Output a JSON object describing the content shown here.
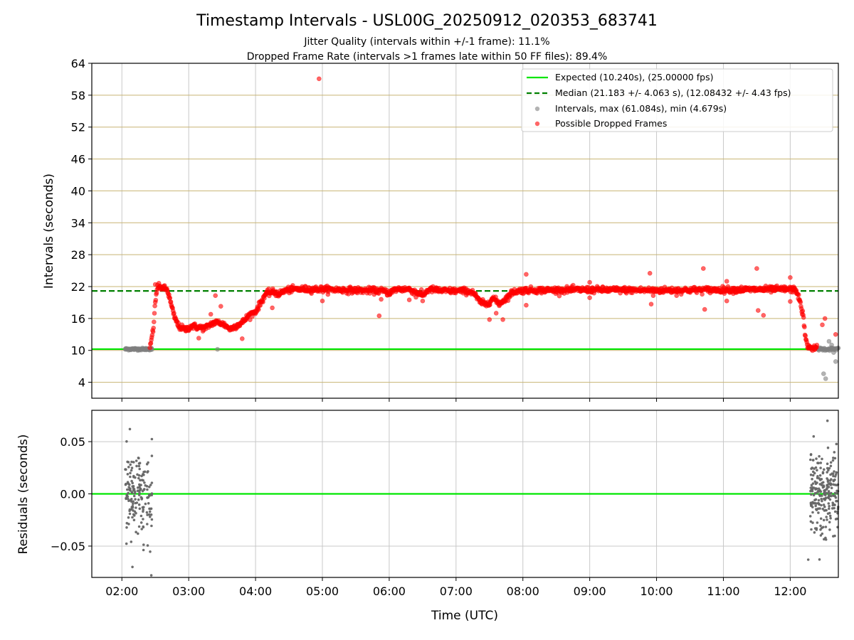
{
  "figure": {
    "title": "Timestamp Intervals - USL00G_20250912_020353_683741",
    "subtitle_1": "Jitter Quality (intervals within +/-1 frame): 11.1%",
    "subtitle_2": "Dropped Frame Rate (intervals >1 frames late within 50 FF files): 89.4%"
  },
  "colors": {
    "expected": "#00e600",
    "median": "#008000",
    "intervals": "#808080",
    "dropped": "#ff0000",
    "hgrid": "#c8b473",
    "vgrid": "#c8c8c8",
    "residual_points": "#666666"
  },
  "chart_data": [
    {
      "type": "scatter",
      "xlabel": "",
      "ylabel": "Intervals (seconds)",
      "x_unit": "hours (UTC)",
      "xlim": [
        1.55,
        12.72
      ],
      "ylim": [
        1,
        64
      ],
      "y_ticks": [
        4,
        10,
        16,
        22,
        28,
        34,
        40,
        46,
        52,
        58,
        64
      ],
      "y_tick_labels": [
        "4",
        "10",
        "16",
        "22",
        "28",
        "34",
        "40",
        "46",
        "52",
        "58",
        "64"
      ],
      "x_ticks": [
        2,
        3,
        4,
        5,
        6,
        7,
        8,
        9,
        10,
        11,
        12
      ],
      "grid": true,
      "legend_position": "top-right",
      "series": [
        {
          "name": "Expected (10.240s), (25.00000 fps)",
          "kind": "hline",
          "y": 10.24
        },
        {
          "name": "Median (21.183 +/- 4.063 s), (12.08432 +/- 4.43 fps)",
          "kind": "hline-dashed",
          "y": 21.183
        },
        {
          "name": "Intervals, max (61.084s), min (4.679s)",
          "kind": "scatter",
          "segments": [
            {
              "x_from": 2.05,
              "x_to": 2.45,
              "points": 80,
              "y": 10.24,
              "spread": 0.25
            },
            {
              "x_from": 12.4,
              "x_to": 12.72,
              "points": 45,
              "y": 10.24,
              "spread": 0.35
            }
          ],
          "points": [
            [
              3.43,
              10.2
            ],
            [
              12.5,
              5.6
            ],
            [
              12.53,
              4.68
            ],
            [
              12.58,
              11.7
            ],
            [
              12.62,
              11.0
            ],
            [
              12.68,
              7.9
            ],
            [
              12.65,
              9.6
            ]
          ]
        },
        {
          "name": "Possible Dropped Frames",
          "kind": "scatter",
          "profile": [
            [
              2.42,
              10.5
            ],
            [
              2.47,
              14.0
            ],
            [
              2.5,
              19.0
            ],
            [
              2.53,
              22.0
            ],
            [
              2.6,
              21.8
            ],
            [
              2.68,
              21.4
            ],
            [
              2.72,
              19.5
            ],
            [
              2.78,
              16.5
            ],
            [
              2.85,
              14.5
            ],
            [
              2.95,
              13.9
            ],
            [
              3.05,
              14.6
            ],
            [
              3.15,
              14.3
            ],
            [
              3.25,
              14.2
            ],
            [
              3.35,
              15.1
            ],
            [
              3.45,
              15.3
            ],
            [
              3.55,
              14.7
            ],
            [
              3.62,
              14.0
            ],
            [
              3.7,
              14.6
            ],
            [
              3.8,
              15.2
            ],
            [
              3.9,
              16.6
            ],
            [
              4.0,
              17.3
            ],
            [
              4.07,
              18.8
            ],
            [
              4.15,
              20.6
            ],
            [
              4.25,
              21.0
            ],
            [
              4.35,
              20.6
            ],
            [
              4.45,
              21.3
            ],
            [
              4.6,
              21.5
            ],
            [
              5.0,
              21.5
            ],
            [
              5.5,
              21.3
            ],
            [
              5.9,
              21.2
            ],
            [
              6.0,
              20.8
            ],
            [
              6.1,
              21.5
            ],
            [
              6.3,
              21.5
            ],
            [
              6.5,
              20.4
            ],
            [
              6.6,
              21.5
            ],
            [
              6.8,
              21.2
            ],
            [
              7.1,
              21.2
            ],
            [
              7.25,
              21.0
            ],
            [
              7.35,
              19.2
            ],
            [
              7.45,
              18.6
            ],
            [
              7.55,
              19.8
            ],
            [
              7.65,
              18.8
            ],
            [
              7.75,
              19.8
            ],
            [
              7.85,
              21.0
            ],
            [
              8.0,
              21.3
            ],
            [
              9.0,
              21.4
            ],
            [
              10.0,
              21.3
            ],
            [
              11.0,
              21.4
            ],
            [
              12.0,
              21.5
            ],
            [
              12.08,
              21.4
            ],
            [
              12.1,
              21.0
            ],
            [
              12.15,
              19.0
            ],
            [
              12.2,
              16.0
            ],
            [
              12.23,
              12.0
            ],
            [
              12.27,
              10.5
            ],
            [
              12.4,
              10.5
            ]
          ],
          "outliers": [
            [
              4.95,
              61.08
            ],
            [
              2.5,
              22.4
            ],
            [
              3.15,
              12.3
            ],
            [
              3.4,
              20.3
            ],
            [
              3.48,
              18.3
            ],
            [
              3.33,
              16.8
            ],
            [
              3.8,
              12.2
            ],
            [
              4.25,
              18.0
            ],
            [
              5.0,
              19.3
            ],
            [
              5.85,
              16.5
            ],
            [
              5.88,
              19.6
            ],
            [
              6.3,
              19.5
            ],
            [
              6.4,
              20.0
            ],
            [
              6.5,
              19.3
            ],
            [
              7.5,
              15.8
            ],
            [
              7.6,
              17.0
            ],
            [
              7.7,
              15.8
            ],
            [
              7.8,
              20.2
            ],
            [
              8.05,
              18.5
            ],
            [
              8.05,
              24.3
            ],
            [
              9.0,
              22.8
            ],
            [
              9.0,
              19.9
            ],
            [
              9.9,
              24.5
            ],
            [
              9.92,
              18.7
            ],
            [
              9.95,
              20.3
            ],
            [
              10.3,
              20.3
            ],
            [
              10.7,
              25.4
            ],
            [
              10.72,
              17.7
            ],
            [
              11.05,
              23.0
            ],
            [
              11.05,
              19.3
            ],
            [
              11.5,
              25.4
            ],
            [
              11.52,
              17.5
            ],
            [
              11.6,
              16.6
            ],
            [
              12.0,
              19.2
            ],
            [
              12.0,
              23.7
            ],
            [
              12.48,
              14.8
            ],
            [
              12.52,
              16.0
            ],
            [
              12.68,
              13.0
            ]
          ]
        }
      ]
    },
    {
      "type": "scatter",
      "xlabel": "Time (UTC)",
      "ylabel": "Residuals (seconds)",
      "xlim": [
        1.55,
        12.72
      ],
      "ylim": [
        -0.08,
        0.08
      ],
      "y_ticks": [
        0.05,
        0.0,
        -0.05
      ],
      "y_tick_labels": [
        "0.05",
        "0.00",
        "−0.05"
      ],
      "x_ticks": [
        2,
        3,
        4,
        5,
        6,
        7,
        8,
        9,
        10,
        11,
        12
      ],
      "x_tick_labels": [
        "02:00",
        "03:00",
        "04:00",
        "05:00",
        "06:00",
        "07:00",
        "08:00",
        "09:00",
        "10:00",
        "11:00",
        "12:00"
      ],
      "grid": true,
      "series": [
        {
          "kind": "hline",
          "y": 0.0
        },
        {
          "kind": "scatter",
          "clusters": [
            {
              "x_from": 2.05,
              "x_to": 2.45,
              "points": 170,
              "sd": 0.022
            },
            {
              "x_from": 12.3,
              "x_to": 12.72,
              "points": 230,
              "sd": 0.02
            }
          ],
          "points": [
            [
              2.12,
              0.062
            ],
            [
              2.44,
              -0.078
            ],
            [
              12.27,
              -0.063
            ],
            [
              12.35,
              0.055
            ]
          ]
        }
      ]
    }
  ]
}
